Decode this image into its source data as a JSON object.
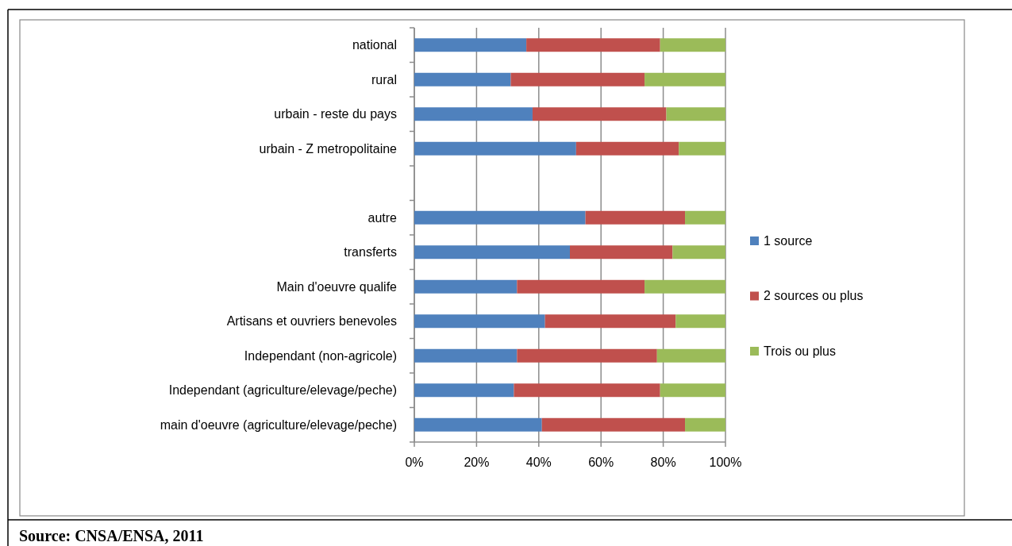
{
  "chart_data": {
    "type": "bar",
    "orientation": "horizontal",
    "stacked": true,
    "categories": [
      "national",
      "rural",
      "urbain - reste du pays",
      "urbain - Z metropolitaine",
      null,
      "autre",
      "transferts",
      "Main d'oeuvre qualife",
      "Artisans et ouvriers benevoles",
      "Independant (non-agricole)",
      "Independant (agriculture/elevage/peche)",
      "main d'oeuvre (agriculture/elevage/peche)"
    ],
    "series": [
      {
        "name": "1 source",
        "color": "#4f81bd",
        "values": [
          36,
          31,
          38,
          52,
          null,
          55,
          50,
          33,
          42,
          33,
          32,
          41
        ]
      },
      {
        "name": "2 sources ou plus",
        "color": "#c0504d",
        "values": [
          43,
          43,
          43,
          33,
          null,
          32,
          33,
          41,
          42,
          45,
          47,
          46
        ]
      },
      {
        "name": "Trois ou plus",
        "color": "#9bbb59",
        "values": [
          21,
          26,
          19,
          15,
          null,
          13,
          17,
          26,
          16,
          22,
          21,
          13
        ]
      }
    ],
    "xlim": [
      0,
      100
    ],
    "xticks": [
      {
        "value": 0,
        "label": "0%"
      },
      {
        "value": 20,
        "label": "20%"
      },
      {
        "value": 40,
        "label": "40%"
      },
      {
        "value": 60,
        "label": "60%"
      },
      {
        "value": 80,
        "label": "80%"
      },
      {
        "value": 100,
        "label": "100%"
      }
    ],
    "grid": "x",
    "legend": "right",
    "annotations": [
      "Source: CNSA/ENSA, 2011"
    ]
  }
}
